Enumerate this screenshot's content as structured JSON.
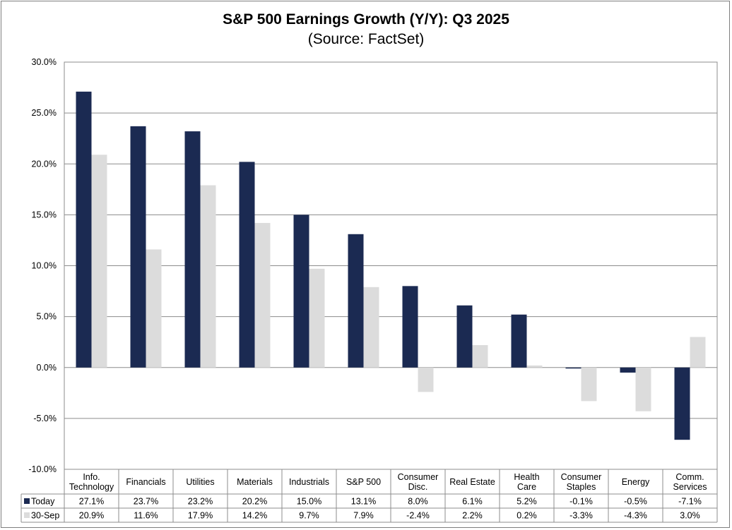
{
  "chart_data": {
    "type": "bar",
    "title": "S&P 500 Earnings Growth (Y/Y): Q3 2025",
    "subtitle": "(Source: FactSet)",
    "categories": [
      [
        "Info.",
        "Technology"
      ],
      [
        "Financials"
      ],
      [
        "Utilities"
      ],
      [
        "Materials"
      ],
      [
        "Industrials"
      ],
      [
        "S&P 500"
      ],
      [
        "Consumer",
        "Disc."
      ],
      [
        "Real Estate"
      ],
      [
        "Health",
        "Care"
      ],
      [
        "Consumer",
        "Staples"
      ],
      [
        "Energy"
      ],
      [
        "Comm.",
        "Services"
      ]
    ],
    "series": [
      {
        "name": "Today",
        "color": "#1b2a52",
        "values": [
          27.1,
          23.7,
          23.2,
          20.2,
          15.0,
          13.1,
          8.0,
          6.1,
          5.2,
          -0.1,
          -0.5,
          -7.1
        ],
        "labels": [
          "27.1%",
          "23.7%",
          "23.2%",
          "20.2%",
          "15.0%",
          "13.1%",
          "8.0%",
          "6.1%",
          "5.2%",
          "-0.1%",
          "-0.5%",
          "-7.1%"
        ]
      },
      {
        "name": "30-Sep",
        "color": "#dcdcdc",
        "values": [
          20.9,
          11.6,
          17.9,
          14.2,
          9.7,
          7.9,
          -2.4,
          2.2,
          0.2,
          -3.3,
          -4.3,
          3.0
        ],
        "labels": [
          "20.9%",
          "11.6%",
          "17.9%",
          "14.2%",
          "9.7%",
          "7.9%",
          "-2.4%",
          "2.2%",
          "0.2%",
          "-3.3%",
          "-4.3%",
          "3.0%"
        ]
      }
    ],
    "ylim": [
      -10,
      30
    ],
    "yticks": [
      30,
      25,
      20,
      15,
      10,
      5,
      0,
      -5,
      -10
    ],
    "ytick_labels": [
      "30.0%",
      "25.0%",
      "20.0%",
      "15.0%",
      "10.0%",
      "5.0%",
      "0.0%",
      "-5.0%",
      "-10.0%"
    ],
    "grid": true,
    "legend": "data-table"
  }
}
